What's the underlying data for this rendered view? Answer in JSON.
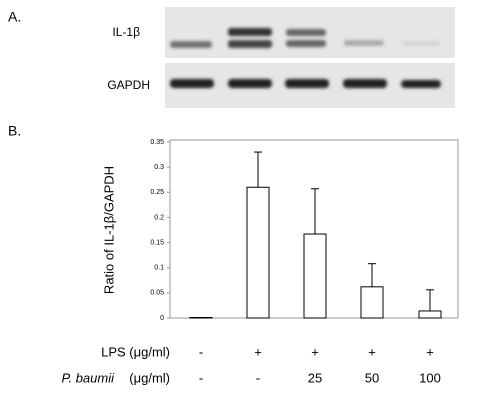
{
  "panel_a": {
    "label": "A.",
    "rows": [
      {
        "label": "IL-1β"
      },
      {
        "label": "GAPDH"
      }
    ]
  },
  "chart_data": {
    "type": "bar",
    "panel_label": "B.",
    "y_label": "Ratio of IL-1β/GAPDH",
    "categories": [
      null,
      null,
      null,
      null,
      null
    ],
    "values": [
      0.001,
      0.26,
      0.167,
      0.062,
      0.014
    ],
    "errors": [
      0,
      0.07,
      0.09,
      0.046,
      0.042
    ],
    "color": "#ffffff",
    "ylim": [
      0,
      0.35
    ],
    "yticks": [
      0,
      0.05,
      0.1,
      0.15,
      0.2,
      0.25,
      0.3,
      0.35
    ],
    "conditions": [
      {
        "label": "LPS (μg/ml)",
        "values": [
          "-",
          "+",
          "+",
          "+",
          "+"
        ]
      },
      {
        "label": "P. baumii",
        "unit": "(μg/ml)",
        "values": [
          "-",
          "-",
          "25",
          "50",
          "100"
        ]
      }
    ]
  }
}
